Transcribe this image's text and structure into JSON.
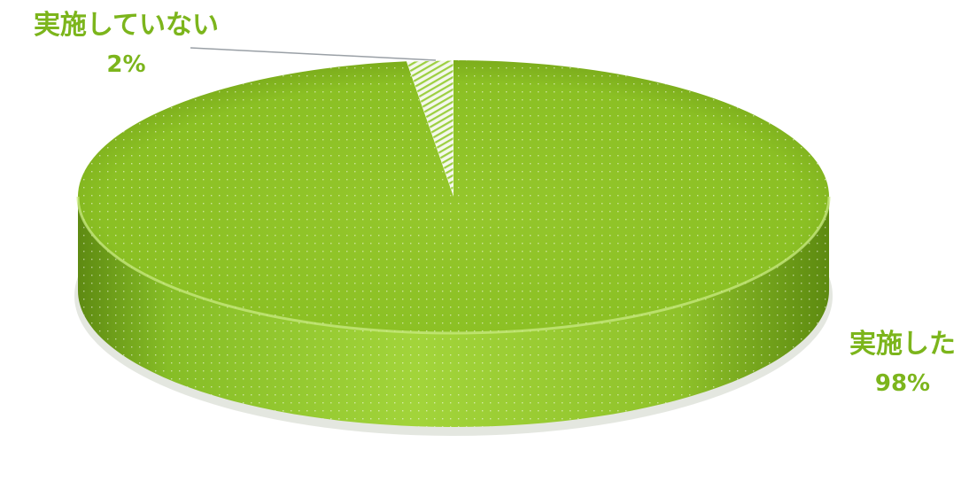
{
  "chart_data": {
    "type": "pie",
    "title": "",
    "slices": [
      {
        "label": "実施していない",
        "value": 2,
        "value_label": "2%",
        "color": "#ffffff"
      },
      {
        "label": "実施した",
        "value": 98,
        "value_label": "98%",
        "color": "#8fc326"
      }
    ],
    "legend": "none"
  }
}
